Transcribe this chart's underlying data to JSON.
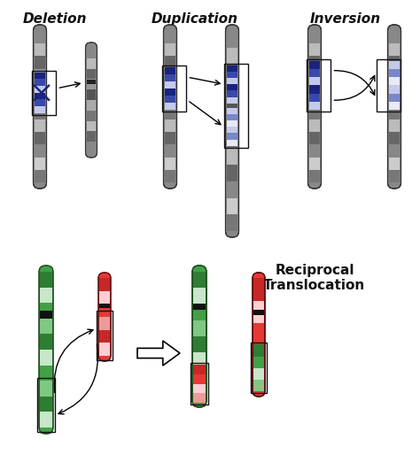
{
  "labels": {
    "deletion": "Deletion",
    "duplication": "Duplication",
    "inversion": "Inversion",
    "reciprocal": "Reciprocal\nTranslocation"
  },
  "colors": {
    "chrom_dark": "#444444",
    "chrom_mid": "#777777",
    "chrom_light": "#999999",
    "chrom_lighter": "#bbbbbb",
    "chrom_white": "#dddddd",
    "blue_dark": "#1a237e",
    "blue_mid": "#3949ab",
    "blue_light": "#7986cb",
    "blue_lighter": "#c5cae9",
    "blue_white": "#e8eaf6",
    "green_dark": "#2e7d32",
    "green_mid": "#43a047",
    "green_light": "#81c784",
    "green_lighter": "#c8e6c9",
    "red_dark": "#c62828",
    "red_mid": "#e53935",
    "red_light": "#ef9a9a",
    "red_lighter": "#ffcdd2",
    "black": "#111111",
    "bg": "#ffffff"
  },
  "figsize": [
    4.74,
    5.31
  ],
  "dpi": 100
}
